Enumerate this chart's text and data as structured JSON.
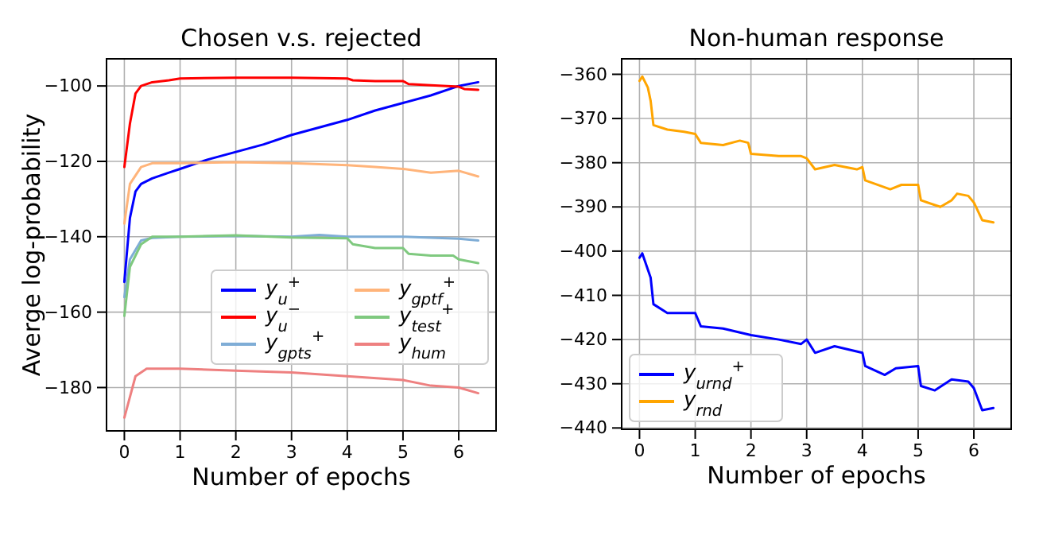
{
  "chart_data": [
    {
      "type": "line",
      "title": "Chosen v.s. rejected",
      "xlabel": "Number of epochs",
      "ylabel": "Averge log-probability",
      "xlim": [
        -0.32,
        6.67
      ],
      "xticks": [
        0,
        1,
        2,
        3,
        4,
        5,
        6
      ],
      "ylim": [
        -191.5,
        -92.8
      ],
      "yticks": [
        -180,
        -160,
        -140,
        -120,
        -100
      ],
      "grid": true,
      "legend": "lower right",
      "series": [
        {
          "name": "y$_{u}$$^{+}$",
          "color": "#0000ff",
          "x": [
            0,
            0.1,
            0.2,
            0.3,
            0.5,
            0.8,
            1,
            1.5,
            2,
            2.5,
            3,
            3.5,
            4,
            4.5,
            5,
            5.5,
            6,
            6.35
          ],
          "values": [
            -152,
            -135,
            -128,
            -126,
            -124.5,
            -123,
            -122,
            -119.5,
            -117.5,
            -115.5,
            -113,
            -111,
            -109,
            -106.5,
            -104.5,
            -102.5,
            -100,
            -99
          ]
        },
        {
          "name": "y$_{u}$$^{−}$",
          "color": "#ff0000",
          "x": [
            0,
            0.1,
            0.2,
            0.3,
            0.5,
            0.8,
            1,
            2,
            3,
            4,
            4.1,
            4.5,
            5,
            5.1,
            5.5,
            6,
            6.1,
            6.35
          ],
          "values": [
            -121.5,
            -110,
            -102,
            -100,
            -99,
            -98.5,
            -98,
            -97.8,
            -97.8,
            -98,
            -98.5,
            -98.7,
            -98.7,
            -99.5,
            -99.8,
            -100.2,
            -100.8,
            -101
          ]
        },
        {
          "name": "y$_{gpts}$$^{+}$",
          "color": "#7fadd6",
          "x": [
            0,
            0.1,
            0.3,
            0.5,
            1,
            2,
            3,
            3.5,
            4,
            5,
            6,
            6.35
          ],
          "values": [
            -156,
            -146,
            -141,
            -140.3,
            -140,
            -139.8,
            -140,
            -139.5,
            -140,
            -140,
            -140.5,
            -141
          ]
        },
        {
          "name": "y$_{gptf}$$^{+}$",
          "color": "#ffb47a",
          "x": [
            0,
            0.1,
            0.3,
            0.5,
            1,
            2,
            3,
            4,
            4.5,
            5,
            5.5,
            6,
            6.35
          ],
          "values": [
            -136.5,
            -126,
            -121.5,
            -120.5,
            -120.5,
            -120.2,
            -120.5,
            -121,
            -121.5,
            -122,
            -123,
            -122.5,
            -124
          ]
        },
        {
          "name": "y$_{test}$$^{+}$",
          "color": "#7fc97f",
          "x": [
            0,
            0.1,
            0.3,
            0.5,
            1,
            2,
            3,
            4,
            4.1,
            4.5,
            5,
            5.1,
            5.5,
            5.9,
            6,
            6.35
          ],
          "values": [
            -161,
            -148,
            -142,
            -140,
            -140,
            -139.6,
            -140.2,
            -140.4,
            -142,
            -143,
            -143,
            -144.5,
            -145,
            -145,
            -146,
            -147
          ]
        },
        {
          "name": "y$_{hum}$",
          "color": "#ee8080",
          "x": [
            0,
            0.2,
            0.4,
            1,
            2,
            3,
            4,
            5,
            5.5,
            6,
            6.35
          ],
          "values": [
            -188,
            -177,
            -175,
            -175,
            -175.5,
            -176,
            -177,
            -178,
            -179.5,
            -180,
            -181.5
          ]
        }
      ]
    },
    {
      "type": "line",
      "title": "Non-human response",
      "xlabel": "Number of epochs",
      "xlim": [
        -0.32,
        6.67
      ],
      "xticks": [
        0,
        1,
        2,
        3,
        4,
        5,
        6
      ],
      "ylim": [
        -440.3,
        -356.5
      ],
      "yticks": [
        -440,
        -430,
        -420,
        -410,
        -400,
        -390,
        -380,
        -370,
        -360
      ],
      "grid": true,
      "legend": "lower left",
      "series": [
        {
          "name": "y$_{urnd}$$^{+}$",
          "color": "#0000ff",
          "x": [
            0,
            0.05,
            0.2,
            0.25,
            0.5,
            1,
            1.1,
            1.5,
            2,
            2.5,
            2.9,
            3,
            3.15,
            3.5,
            4,
            4.05,
            4.4,
            4.6,
            5,
            5.05,
            5.3,
            5.6,
            5.9,
            6,
            6.15,
            6.35
          ],
          "values": [
            -401.5,
            -400.5,
            -406,
            -412,
            -414,
            -414,
            -417,
            -417.5,
            -419,
            -420,
            -421,
            -420,
            -423,
            -421.5,
            -423,
            -426,
            -428,
            -426.5,
            -426,
            -430.5,
            -431.5,
            -429,
            -429.5,
            -431,
            -436,
            -435.5
          ]
        },
        {
          "name": "y$_{rnd}$$^{'}$",
          "color": "#ffa500",
          "x": [
            0,
            0.05,
            0.15,
            0.2,
            0.25,
            0.5,
            0.8,
            1,
            1.1,
            1.5,
            1.8,
            1.95,
            2,
            2.5,
            2.9,
            3,
            3.15,
            3.5,
            3.9,
            4,
            4.05,
            4.5,
            4.7,
            5,
            5.05,
            5.4,
            5.6,
            5.7,
            5.9,
            6,
            6.15,
            6.35
          ],
          "values": [
            -361.5,
            -360.5,
            -363,
            -366,
            -371.5,
            -372.5,
            -373,
            -373.5,
            -375.5,
            -376,
            -375,
            -375.5,
            -378,
            -378.5,
            -378.5,
            -379,
            -381.5,
            -380.5,
            -381.5,
            -381,
            -384,
            -386,
            -385,
            -385,
            -388.5,
            -390,
            -388.5,
            -387,
            -387.5,
            -389,
            -393,
            -393.5
          ]
        }
      ]
    }
  ]
}
